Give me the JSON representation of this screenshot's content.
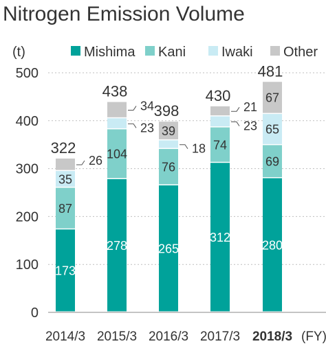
{
  "chart_data": {
    "type": "bar",
    "stacked": true,
    "title": "Nitrogen Emission Volume",
    "ylabel": "(t)",
    "xlabel": "(FY)",
    "ylim": [
      0,
      500
    ],
    "yticks": [
      0,
      100,
      200,
      300,
      400,
      500
    ],
    "grid": true,
    "legend_position": "top",
    "categories": [
      "2014/3",
      "2015/3",
      "2016/3",
      "2017/3",
      "2018/3"
    ],
    "highlight_category": "2018/3",
    "series": [
      {
        "name": "Mishima",
        "color": "#00a29a",
        "values": [
          173,
          278,
          265,
          312,
          280
        ]
      },
      {
        "name": "Kani",
        "color": "#7fd0ca",
        "values": [
          87,
          104,
          76,
          74,
          69
        ]
      },
      {
        "name": "Iwaki",
        "color": "#c9ebf4",
        "values": [
          35,
          23,
          18,
          23,
          65
        ]
      },
      {
        "name": "Other",
        "color": "#c8c8c8",
        "values": [
          26,
          34,
          39,
          21,
          67
        ]
      }
    ],
    "totals": [
      322,
      438,
      398,
      430,
      481
    ]
  }
}
